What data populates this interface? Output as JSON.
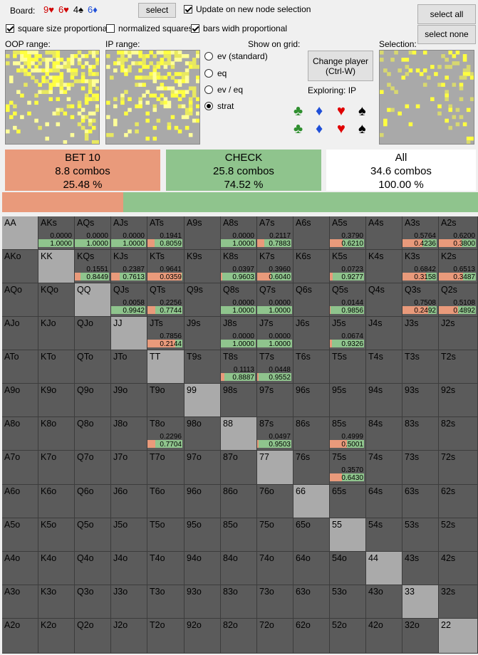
{
  "top": {
    "board_label": "Board:",
    "board_cards": [
      {
        "text": "9♥",
        "color": "#d00000"
      },
      {
        "text": "6♥",
        "color": "#d00000"
      },
      {
        "text": "4♠",
        "color": "#000000"
      },
      {
        "text": "6♦",
        "color": "#1f4fd8"
      }
    ],
    "select_button": "select",
    "update_checkbox": {
      "label": "Update on new node selection",
      "checked": true
    },
    "select_all_button": "select all",
    "select_none_button": "select none",
    "square_size_checkbox": {
      "label": "square size proportional",
      "checked": true
    },
    "normalized_checkbox": {
      "label": "normalized squares",
      "checked": false
    },
    "bars_width_checkbox": {
      "label": "bars widh proportional",
      "checked": true
    }
  },
  "ranges": {
    "oop_label": "OOP range:",
    "ip_label": "IP range:",
    "selection_label": "Selection:"
  },
  "show_on_grid": {
    "label": "Show on grid:",
    "options": [
      {
        "label": "ev (standard)",
        "selected": false
      },
      {
        "label": "eq",
        "selected": false
      },
      {
        "label": "ev / eq",
        "selected": false
      },
      {
        "label": "strat",
        "selected": true
      }
    ]
  },
  "change_player_button": {
    "line1": "Change player",
    "line2": "(Ctrl-W)"
  },
  "exploring_label": "Exploring: IP",
  "suits": [
    {
      "icon": "club-icon",
      "glyph": "♣",
      "color": "#2f8f2f"
    },
    {
      "icon": "diamond-icon",
      "glyph": "♦",
      "color": "#1f4fd8"
    },
    {
      "icon": "heart-icon",
      "glyph": "♥",
      "color": "#e00000"
    },
    {
      "icon": "spade-icon",
      "glyph": "♠",
      "color": "#000000"
    }
  ],
  "summary": [
    {
      "title": "BET 10",
      "combos": "8.8 combos",
      "pct": "25.48 %",
      "color": "#e99a7b"
    },
    {
      "title": "CHECK",
      "combos": "25.8 combos",
      "pct": "74.52 %",
      "color": "#8fc48d"
    },
    {
      "title": "All",
      "combos": "34.6 combos",
      "pct": "100.00 %",
      "color": "#ffffff"
    }
  ],
  "strategy_bar": {
    "bet_fraction": 0.2548,
    "bet_color": "#e99a7b",
    "check_color": "#8fc48d"
  },
  "grid": {
    "ranks": [
      "A",
      "K",
      "Q",
      "J",
      "T",
      "9",
      "8",
      "7",
      "6",
      "5",
      "4",
      "3",
      "2"
    ],
    "cells": {
      "AKs": [
        "0.0000",
        "1.0000"
      ],
      "AQs": [
        "0.0000",
        "1.0000"
      ],
      "AJs": [
        "0.0000",
        "1.0000"
      ],
      "ATs": [
        "0.1941",
        "0.8059"
      ],
      "A8s": [
        "0.0000",
        "1.0000"
      ],
      "A7s": [
        "0.2117",
        "0.7883"
      ],
      "A5s": [
        "0.3790",
        "0.6210"
      ],
      "A3s": [
        "0.5764",
        "0.4236"
      ],
      "A2s": [
        "0.6200",
        "0.3800"
      ],
      "KQs": [
        "0.1551",
        "0.8449"
      ],
      "KJs": [
        "0.2387",
        "0.7613"
      ],
      "KTs": [
        "0.9641",
        "0.0359"
      ],
      "K8s": [
        "0.0397",
        "0.9603"
      ],
      "K7s": [
        "0.3960",
        "0.6040"
      ],
      "K5s": [
        "0.0723",
        "0.9277"
      ],
      "K3s": [
        "0.6842",
        "0.3158"
      ],
      "K2s": [
        "0.6513",
        "0.3487"
      ],
      "QJs": [
        "0.0058",
        "0.9942"
      ],
      "QTs": [
        "0.2256",
        "0.7744"
      ],
      "Q8s": [
        "0.0000",
        "1.0000"
      ],
      "Q7s": [
        "0.0000",
        "1.0000"
      ],
      "Q5s": [
        "0.0144",
        "0.9856"
      ],
      "Q3s": [
        "0.7508",
        "0.2492"
      ],
      "Q2s": [
        "0.5108",
        "0.4892"
      ],
      "JTs": [
        "0.7856",
        "0.2144"
      ],
      "J8s": [
        "0.0000",
        "1.0000"
      ],
      "J7s": [
        "0.0000",
        "1.0000"
      ],
      "J5s": [
        "0.0674",
        "0.9326"
      ],
      "T8s": [
        "0.1113",
        "0.8887"
      ],
      "T7s": [
        "0.0448",
        "0.9552"
      ],
      "T8o": [
        "0.2296",
        "0.7704"
      ],
      "87s": [
        "0.0497",
        "0.9503"
      ],
      "85s": [
        "0.4999",
        "0.5001"
      ],
      "75s": [
        "0.3570",
        "0.6430"
      ]
    }
  }
}
